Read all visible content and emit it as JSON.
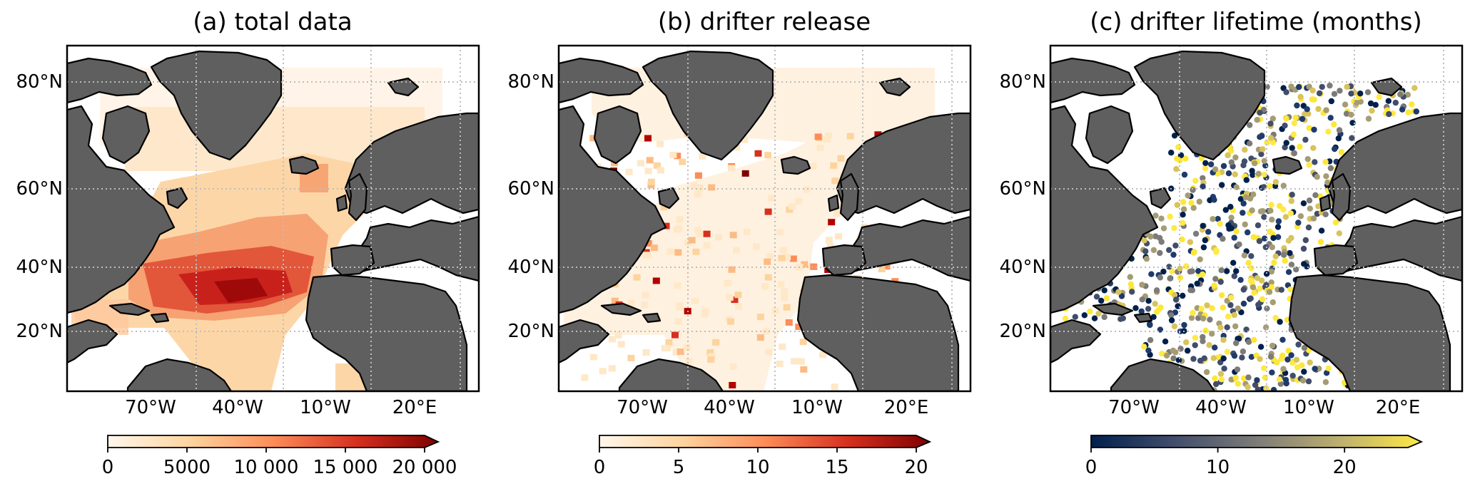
{
  "panels": [
    {
      "title": "(a) total data",
      "lat_labels": [
        "80°N",
        "60°N",
        "40°N",
        "20°N"
      ],
      "lon_labels": [
        "70°W",
        "40°W",
        "10°W",
        "20°E"
      ],
      "colorbar": {
        "ticks": [
          "0",
          "5000",
          "10 000",
          "15 000",
          "20 000"
        ],
        "values": [
          0,
          5000,
          10000,
          15000,
          20000
        ],
        "range": [
          0,
          20000
        ],
        "extend": "max",
        "colormap": "OrRd"
      }
    },
    {
      "title": "(b) drifter release",
      "lat_labels": [
        "80°N",
        "60°N",
        "40°N",
        "20°N"
      ],
      "lon_labels": [
        "70°W",
        "40°W",
        "10°W",
        "20°E"
      ],
      "colorbar": {
        "ticks": [
          "0",
          "5",
          "10",
          "15",
          "20"
        ],
        "values": [
          0,
          5,
          10,
          15,
          20
        ],
        "range": [
          0,
          20
        ],
        "extend": "max",
        "colormap": "OrRd"
      }
    },
    {
      "title": "(c) drifter lifetime (months)",
      "lat_labels": [
        "80°N",
        "60°N",
        "40°N",
        "20°N"
      ],
      "lon_labels": [
        "70°W",
        "40°W",
        "10°W",
        "20°E"
      ],
      "colorbar": {
        "ticks": [
          "0",
          "10",
          "20"
        ],
        "values": [
          0,
          10,
          20
        ],
        "range": [
          0,
          25
        ],
        "extend": "max",
        "colormap": "cividis"
      }
    }
  ],
  "map": {
    "land_color": "#5f5f5f",
    "ocean_color": "#ffffff",
    "gridline_style": "dotted",
    "projection": "North Atlantic"
  }
}
